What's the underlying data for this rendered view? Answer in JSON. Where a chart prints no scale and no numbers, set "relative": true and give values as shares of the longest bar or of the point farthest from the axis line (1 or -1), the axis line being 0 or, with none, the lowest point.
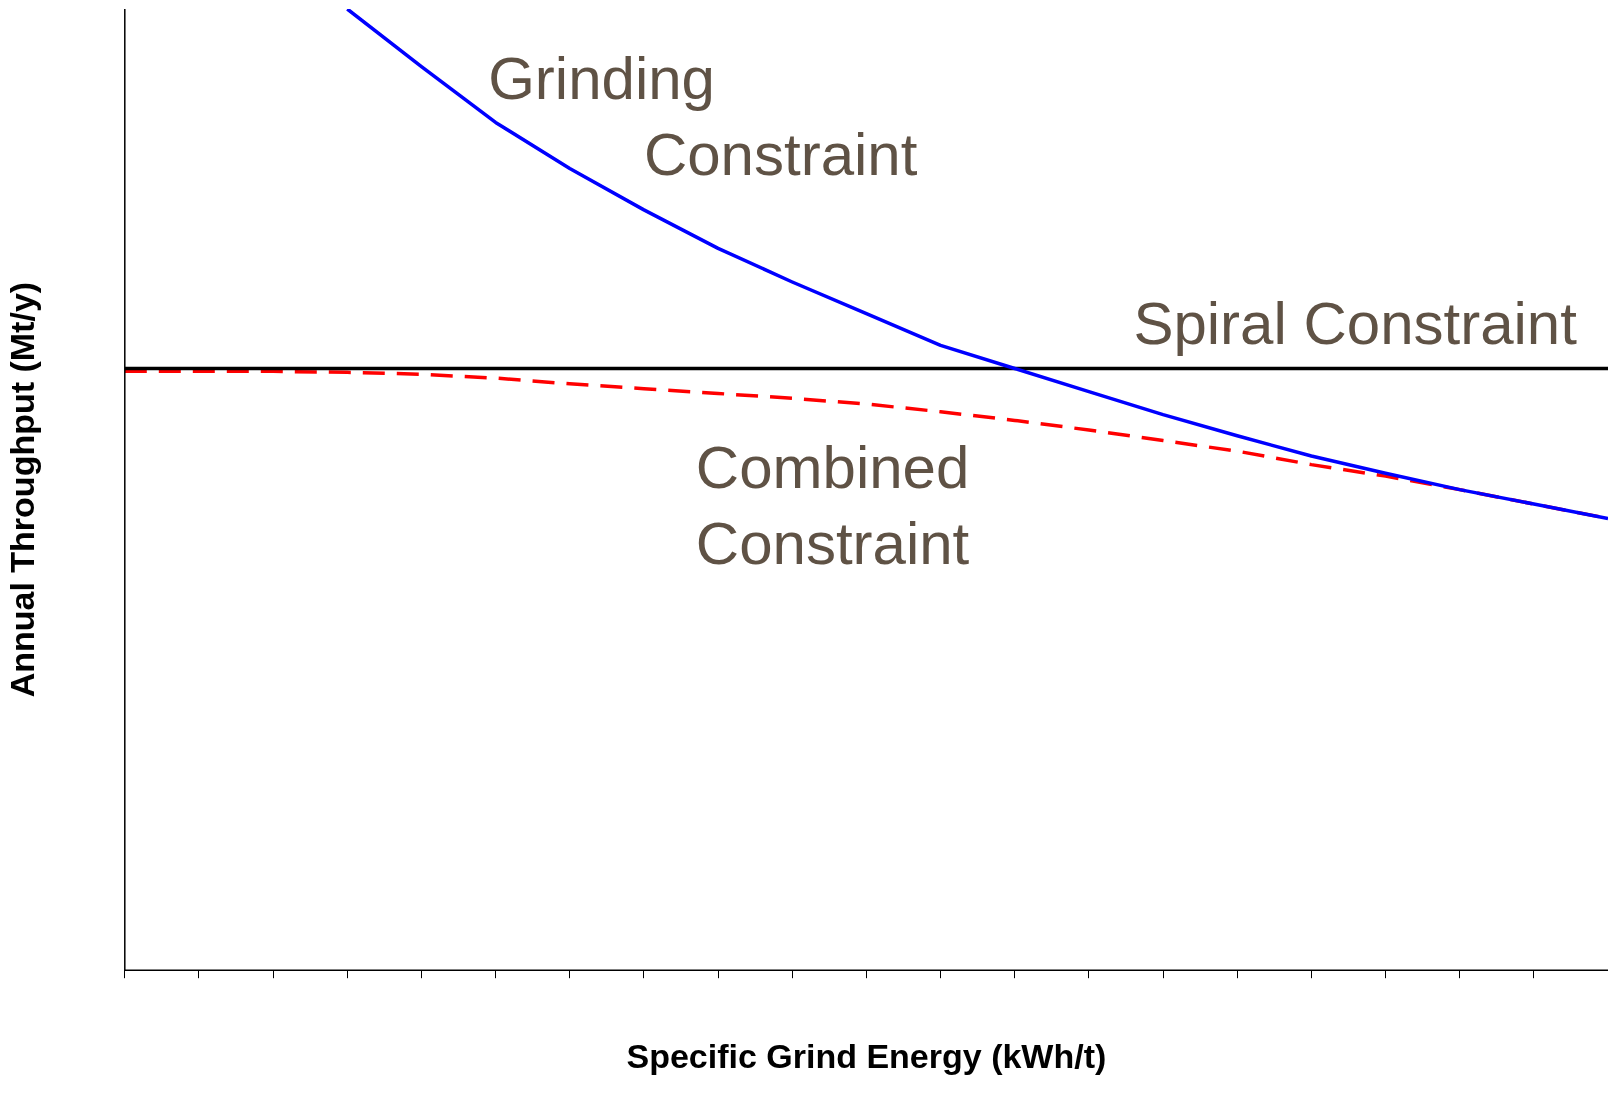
{
  "chart_data": {
    "type": "line",
    "relative": true,
    "xlabel": "Specific Grind Energy (kWh/t)",
    "ylabel": "Annual Throughput (Mt/y)",
    "categories": [
      null,
      null,
      null,
      null,
      null,
      null,
      null,
      null,
      null,
      null,
      null,
      null,
      null,
      null,
      null,
      null,
      null,
      null,
      null,
      null,
      null
    ],
    "legend": false,
    "grid": false,
    "tick_labels": false,
    "marker": "none",
    "series": [
      {
        "name": "Grinding Constraint",
        "color": "#0000ff",
        "line_style": "solid",
        "values": [
          null,
          null,
          null,
          1.0,
          0.94,
          0.882,
          0.834,
          0.791,
          0.751,
          0.716,
          0.683,
          0.65,
          0.626,
          0.602,
          0.578,
          0.556,
          0.535,
          0.517,
          0.5,
          0.485,
          0.47
        ]
      },
      {
        "name": "Spiral Constraint",
        "color": "#000000",
        "line_style": "solid",
        "values": [
          0.626,
          0.626,
          0.626,
          0.626,
          0.626,
          0.626,
          0.626,
          0.626,
          0.626,
          0.626,
          0.626,
          0.626,
          0.626,
          0.626,
          0.626,
          0.626,
          0.626,
          0.626,
          0.626,
          0.626,
          0.626
        ]
      },
      {
        "name": "Combined Constraint",
        "color": "#ff0000",
        "line_style": "dashed",
        "values": [
          0.623,
          0.623,
          0.623,
          0.622,
          0.62,
          0.616,
          0.61,
          0.605,
          0.6,
          0.595,
          0.589,
          0.581,
          0.572,
          0.562,
          0.551,
          0.54,
          0.526,
          0.514,
          0.5,
          0.485,
          0.47
        ]
      }
    ]
  }
}
